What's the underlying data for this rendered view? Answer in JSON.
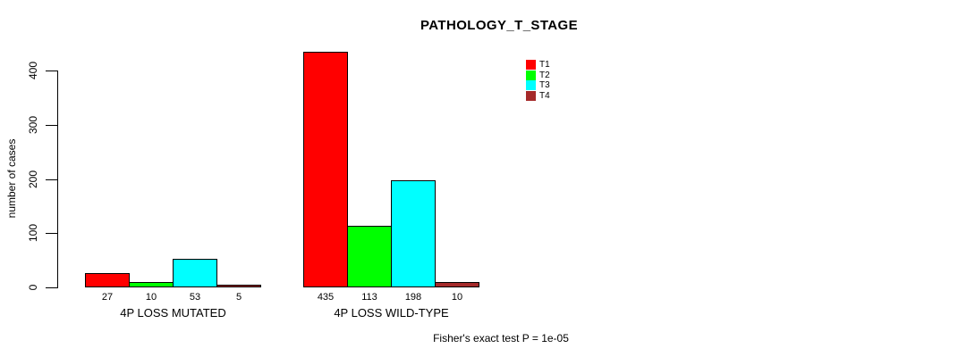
{
  "chart_data": {
    "type": "bar",
    "title": "PATHOLOGY_T_STAGE",
    "xlabel": "",
    "ylabel": "number of cases",
    "categories": [
      "4P LOSS MUTATED",
      "4P LOSS WILD-TYPE"
    ],
    "series": [
      {
        "name": "T1",
        "color": "#FF0000",
        "values": [
          27,
          435
        ]
      },
      {
        "name": "T2",
        "color": "#00FF00",
        "values": [
          10,
          113
        ]
      },
      {
        "name": "T3",
        "color": "#00FFFF",
        "values": [
          53,
          198
        ]
      },
      {
        "name": "T4",
        "color": "#A52A2A",
        "values": [
          5,
          10
        ]
      }
    ],
    "bar_value_labels": [
      [
        "27",
        "10",
        "53",
        "5"
      ],
      [
        "435",
        "113",
        "198",
        "10"
      ]
    ],
    "ylim": [
      0,
      400
    ],
    "yticks": [
      0,
      100,
      200,
      300,
      400
    ],
    "grid": false,
    "legend_position": "top-right-inside",
    "annotation": "Fisher's exact test P = 1e-05"
  }
}
